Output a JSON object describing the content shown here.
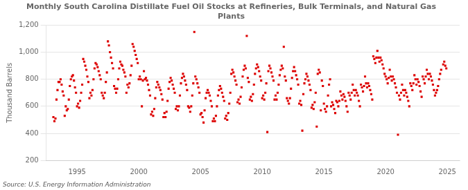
{
  "chart_data": {
    "type": "scatter",
    "title": "Monthly South Carolina Distillate Fuel Oil Stocks at Refineries, Bulk Terminals, and Natural Gas\nPlants",
    "ylabel": "Thousand Barrels",
    "source": "Source: U.S. Energy Information Administration",
    "color": "#dd0000",
    "marker": "square",
    "grid": "y",
    "ylim": [
      200,
      1200
    ],
    "yticks": [
      200,
      400,
      600,
      800,
      {
        "value": 1000,
        "label": "1,000"
      },
      {
        "value": 1200,
        "label": "1,200"
      }
    ],
    "xlim": [
      1992.5,
      2026.0
    ],
    "xticks": [
      1995,
      2000,
      2005,
      2010,
      2015,
      2020,
      2025
    ],
    "x": [
      1993.083,
      1993.167,
      1993.25,
      1993.333,
      1993.417,
      1993.5,
      1993.583,
      1993.667,
      1993.75,
      1993.833,
      1993.917,
      1994.0,
      1994.083,
      1994.167,
      1994.25,
      1994.333,
      1994.417,
      1994.5,
      1994.583,
      1994.667,
      1994.75,
      1994.833,
      1994.917,
      1995.0,
      1995.083,
      1995.167,
      1995.25,
      1995.333,
      1995.417,
      1995.5,
      1995.583,
      1995.667,
      1995.75,
      1995.833,
      1995.917,
      1996.0,
      1996.083,
      1996.167,
      1996.25,
      1996.333,
      1996.417,
      1996.5,
      1996.583,
      1996.667,
      1996.75,
      1996.833,
      1996.917,
      1997.0,
      1997.083,
      1997.167,
      1997.25,
      1997.333,
      1997.417,
      1997.5,
      1997.583,
      1997.667,
      1997.75,
      1997.833,
      1997.917,
      1998.0,
      1998.083,
      1998.167,
      1998.25,
      1998.333,
      1998.417,
      1998.5,
      1998.583,
      1998.667,
      1998.75,
      1998.833,
      1998.917,
      1999.0,
      1999.083,
      1999.167,
      1999.25,
      1999.333,
      1999.417,
      1999.5,
      1999.583,
      1999.667,
      1999.75,
      1999.833,
      1999.917,
      2000.0,
      2000.083,
      2000.167,
      2000.25,
      2000.333,
      2000.417,
      2000.5,
      2000.583,
      2000.667,
      2000.75,
      2000.833,
      2000.917,
      2001.0,
      2001.083,
      2001.167,
      2001.25,
      2001.333,
      2001.417,
      2001.5,
      2001.583,
      2001.667,
      2001.75,
      2001.833,
      2001.917,
      2002.0,
      2002.083,
      2002.167,
      2002.25,
      2002.333,
      2002.417,
      2002.5,
      2002.583,
      2002.667,
      2002.75,
      2002.833,
      2002.917,
      2003.0,
      2003.083,
      2003.167,
      2003.25,
      2003.333,
      2003.417,
      2003.5,
      2003.583,
      2003.667,
      2003.75,
      2003.833,
      2003.917,
      2004.0,
      2004.083,
      2004.167,
      2004.25,
      2004.333,
      2004.417,
      2004.5,
      2004.583,
      2004.667,
      2004.75,
      2004.833,
      2004.917,
      2005.0,
      2005.083,
      2005.167,
      2005.25,
      2005.333,
      2005.417,
      2005.5,
      2005.583,
      2005.667,
      2005.75,
      2005.833,
      2005.917,
      2006.0,
      2006.083,
      2006.167,
      2006.25,
      2006.333,
      2006.417,
      2006.5,
      2006.583,
      2006.667,
      2006.75,
      2006.833,
      2006.917,
      2007.0,
      2007.083,
      2007.167,
      2007.25,
      2007.333,
      2007.417,
      2007.5,
      2007.583,
      2007.667,
      2007.75,
      2007.833,
      2007.917,
      2008.0,
      2008.083,
      2008.167,
      2008.25,
      2008.333,
      2008.417,
      2008.5,
      2008.583,
      2008.667,
      2008.75,
      2008.833,
      2008.917,
      2009.0,
      2009.083,
      2009.167,
      2009.25,
      2009.333,
      2009.417,
      2009.5,
      2009.583,
      2009.667,
      2009.75,
      2009.833,
      2009.917,
      2010.0,
      2010.083,
      2010.167,
      2010.25,
      2010.333,
      2010.417,
      2010.5,
      2010.583,
      2010.667,
      2010.75,
      2010.833,
      2010.917,
      2011.0,
      2011.083,
      2011.167,
      2011.25,
      2011.333,
      2011.417,
      2011.5,
      2011.583,
      2011.667,
      2011.75,
      2011.833,
      2011.917,
      2012.0,
      2012.083,
      2012.167,
      2012.25,
      2012.333,
      2012.417,
      2012.5,
      2012.583,
      2012.667,
      2012.75,
      2012.833,
      2012.917,
      2013.0,
      2013.083,
      2013.167,
      2013.25,
      2013.333,
      2013.417,
      2013.5,
      2013.583,
      2013.667,
      2013.75,
      2013.833,
      2013.917,
      2014.0,
      2014.083,
      2014.167,
      2014.25,
      2014.333,
      2014.417,
      2014.5,
      2014.583,
      2014.667,
      2014.75,
      2014.833,
      2014.917,
      2015.0,
      2015.083,
      2015.167,
      2015.25,
      2015.333,
      2015.417,
      2015.5,
      2015.583,
      2015.667,
      2015.75,
      2015.833,
      2015.917,
      2016.0,
      2016.083,
      2016.167,
      2016.25,
      2016.333,
      2016.417,
      2016.5,
      2016.583,
      2016.667,
      2016.75,
      2016.833,
      2016.917,
      2017.0,
      2017.083,
      2017.167,
      2017.25,
      2017.333,
      2017.417,
      2017.5,
      2017.583,
      2017.667,
      2017.75,
      2017.833,
      2017.917,
      2018.0,
      2018.083,
      2018.167,
      2018.25,
      2018.333,
      2018.417,
      2018.5,
      2018.583,
      2018.667,
      2018.75,
      2018.833,
      2018.917,
      2019.0,
      2019.083,
      2019.167,
      2019.25,
      2019.333,
      2019.417,
      2019.5,
      2019.583,
      2019.667,
      2019.75,
      2019.833,
      2019.917,
      2020.0,
      2020.083,
      2020.167,
      2020.25,
      2020.333,
      2020.417,
      2020.5,
      2020.583,
      2020.667,
      2020.75,
      2020.833,
      2020.917,
      2021.0,
      2021.083,
      2021.167,
      2021.25,
      2021.333,
      2021.417,
      2021.5,
      2021.583,
      2021.667,
      2021.75,
      2021.833,
      2021.917,
      2022.0,
      2022.083,
      2022.167,
      2022.25,
      2022.333,
      2022.417,
      2022.5,
      2022.583,
      2022.667,
      2022.75,
      2022.833,
      2022.917,
      2023.0,
      2023.083,
      2023.167,
      2023.25,
      2023.333,
      2023.417,
      2023.5,
      2023.583,
      2023.667,
      2023.75,
      2023.833,
      2023.917,
      2024.0,
      2024.083,
      2024.167,
      2024.25,
      2024.333,
      2024.417,
      2024.5,
      2024.667,
      2024.75,
      2024.833,
      2024.917
    ],
    "values": [
      520,
      490,
      510,
      650,
      720,
      780,
      780,
      800,
      760,
      710,
      680,
      530,
      600,
      570,
      580,
      650,
      750,
      800,
      820,
      830,
      790,
      740,
      700,
      600,
      620,
      590,
      640,
      700,
      760,
      950,
      930,
      900,
      870,
      820,
      780,
      660,
      700,
      680,
      720,
      800,
      880,
      920,
      910,
      890,
      860,
      830,
      800,
      700,
      680,
      660,
      700,
      780,
      850,
      1080,
      1050,
      1000,
      960,
      920,
      880,
      750,
      730,
      700,
      730,
      800,
      880,
      930,
      910,
      900,
      870,
      850,
      820,
      700,
      760,
      740,
      770,
      830,
      900,
      1060,
      1040,
      1010,
      980,
      950,
      920,
      800,
      820,
      800,
      600,
      790,
      860,
      800,
      810,
      790,
      760,
      720,
      680,
      540,
      560,
      530,
      580,
      660,
      740,
      780,
      760,
      740,
      720,
      690,
      650,
      520,
      550,
      520,
      560,
      640,
      730,
      780,
      810,
      790,
      760,
      730,
      700,
      580,
      600,
      570,
      600,
      680,
      770,
      810,
      840,
      820,
      790,
      760,
      720,
      600,
      590,
      560,
      600,
      680,
      770,
      1150,
      820,
      800,
      770,
      740,
      700,
      540,
      550,
      520,
      480,
      570,
      660,
      700,
      720,
      700,
      680,
      640,
      600,
      490,
      510,
      490,
      530,
      600,
      680,
      720,
      750,
      730,
      700,
      670,
      640,
      510,
      530,
      500,
      550,
      620,
      700,
      840,
      870,
      850,
      820,
      790,
      760,
      630,
      650,
      620,
      670,
      740,
      820,
      870,
      900,
      880,
      1120,
      810,
      780,
      650,
      670,
      640,
      690,
      760,
      840,
      880,
      910,
      890,
      860,
      820,
      790,
      660,
      680,
      650,
      700,
      770,
      410,
      860,
      900,
      880,
      850,
      820,
      790,
      650,
      680,
      650,
      700,
      760,
      830,
      870,
      900,
      880,
      1040,
      820,
      790,
      660,
      640,
      620,
      660,
      730,
      810,
      860,
      890,
      860,
      830,
      800,
      760,
      620,
      640,
      610,
      420,
      690,
      770,
      800,
      840,
      820,
      790,
      760,
      720,
      590,
      610,
      580,
      630,
      700,
      450,
      840,
      870,
      850,
      570,
      790,
      750,
      620,
      580,
      560,
      600,
      680,
      760,
      800,
      600,
      630,
      610,
      580,
      550,
      640,
      630,
      600,
      640,
      710,
      680,
      650,
      690,
      670,
      640,
      600,
      560,
      700,
      680,
      650,
      700,
      760,
      720,
      680,
      720,
      700,
      680,
      640,
      600,
      760,
      740,
      710,
      750,
      820,
      770,
      740,
      770,
      750,
      720,
      690,
      650,
      970,
      950,
      920,
      960,
      1010,
      960,
      930,
      960,
      940,
      910,
      880,
      840,
      820,
      800,
      770,
      810,
      870,
      820,
      790,
      820,
      800,
      770,
      740,
      700,
      390,
      680,
      650,
      700,
      760,
      720,
      680,
      720,
      700,
      670,
      640,
      600,
      770,
      750,
      720,
      770,
      830,
      800,
      760,
      800,
      780,
      750,
      710,
      670,
      820,
      800,
      770,
      820,
      870,
      840,
      800,
      840,
      820,
      790,
      760,
      720,
      680,
      700,
      720,
      750,
      800,
      840,
      870,
      910,
      930,
      900,
      880
    ]
  }
}
